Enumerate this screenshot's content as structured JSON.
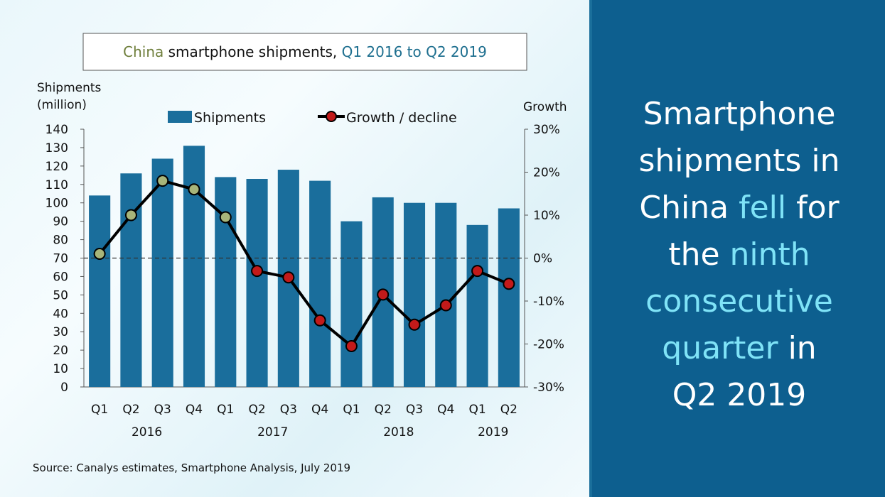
{
  "chart_data": {
    "type": "bar+line",
    "title_parts": [
      {
        "text": "China",
        "color": "#6f7f3c"
      },
      {
        "text": " smartphone  shipments, ",
        "color": "#111111"
      },
      {
        "text": "Q1 2016 to Q2 2019",
        "color": "#1e6f8f"
      }
    ],
    "ylabel_lines": [
      "Shipments",
      "(million)"
    ],
    "y2label": "Growth",
    "categories": [
      "Q1",
      "Q2",
      "Q3",
      "Q4",
      "Q1",
      "Q2",
      "Q3",
      "Q4",
      "Q1",
      "Q2",
      "Q3",
      "Q4",
      "Q1",
      "Q2"
    ],
    "years": [
      {
        "label": "2016",
        "start": 0,
        "end": 3
      },
      {
        "label": "2017",
        "start": 4,
        "end": 7
      },
      {
        "label": "2018",
        "start": 8,
        "end": 11
      },
      {
        "label": "2019",
        "start": 12,
        "end": 13
      }
    ],
    "ylim": [
      0,
      140
    ],
    "yticks": [
      0,
      10,
      20,
      30,
      40,
      50,
      60,
      70,
      80,
      90,
      100,
      110,
      120,
      130,
      140
    ],
    "y2lim": [
      -30,
      30
    ],
    "y2ticks": [
      -30,
      -20,
      -10,
      0,
      10,
      20,
      30
    ],
    "y2tick_labels": [
      "-30%",
      "-20%",
      "-10%",
      "0%",
      "10%",
      "20%",
      "30%"
    ],
    "series": [
      {
        "name": "Shipments",
        "kind": "bar",
        "axis": "left",
        "color": "#1a6e9c",
        "values": [
          104,
          116,
          124,
          131,
          114,
          113,
          118,
          112,
          90,
          103,
          100,
          100,
          88,
          97
        ]
      },
      {
        "name": "Growth / decline",
        "kind": "line",
        "axis": "right",
        "color": "#000000",
        "values": [
          1,
          10,
          18,
          16,
          9.5,
          -3,
          -4.5,
          -14.5,
          -20.5,
          -8.5,
          -15.5,
          -11,
          -3,
          -6
        ]
      }
    ],
    "marker_colors": {
      "positive": "#a7b57a",
      "negative": "#c21a1a"
    },
    "zero_line": "dashed",
    "legend_position": "top"
  },
  "source": "Source:  Canalys estimates, Smartphone  Analysis, July 2019",
  "headline": [
    [
      {
        "t": "Smartphone",
        "hl": false
      }
    ],
    [
      {
        "t": "shipments in",
        "hl": false
      }
    ],
    [
      {
        "t": "China ",
        "hl": false
      },
      {
        "t": "fell",
        "hl": true
      },
      {
        "t": " for",
        "hl": false
      }
    ],
    [
      {
        "t": "the ",
        "hl": false
      },
      {
        "t": "ninth",
        "hl": true
      }
    ],
    [
      {
        "t": "consecutive",
        "hl": true
      }
    ],
    [
      {
        "t": "quarter",
        "hl": true
      },
      {
        "t": " in",
        "hl": false
      }
    ],
    [
      {
        "t": "Q2 2019",
        "hl": false
      }
    ]
  ]
}
